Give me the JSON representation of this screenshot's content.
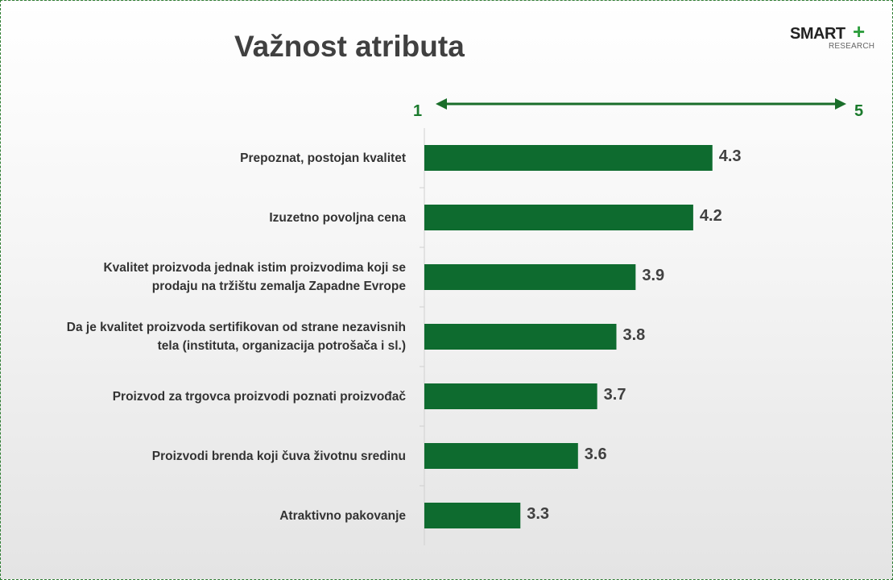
{
  "title": "Važnost atributa",
  "logo": {
    "name": "SMART",
    "plus": "+",
    "sub": "RESEARCH"
  },
  "scale": {
    "min_label": "1",
    "max_label": "5",
    "arrow_color": "#1a6e2a"
  },
  "colors": {
    "bar": "#0e6b2f",
    "axis": "#d0d0d0"
  },
  "chart_data": {
    "type": "bar",
    "orientation": "horizontal",
    "title": "Važnost atributa",
    "categories": [
      [
        "Prepoznat, postojan kvalitet"
      ],
      [
        "Izuzetno povoljna cena"
      ],
      [
        "Kvalitet proizvoda jednak istim proizvodima koji se",
        "prodaju na tržištu zemalja Zapadne Evrope"
      ],
      [
        "Da je kvalitet proizvoda sertifikovan od strane nezavisnih",
        "tela (instituta, organizacija potrošača i sl.)"
      ],
      [
        "Proizvod za trgovca proizvodi poznati proizvođač"
      ],
      [
        "Proizvodi brenda koji čuva životnu sredinu"
      ],
      [
        "Atraktivno pakovanje"
      ]
    ],
    "values": [
      4.3,
      4.2,
      3.9,
      3.8,
      3.7,
      3.6,
      3.3
    ],
    "value_labels": [
      "4.3",
      "4.2",
      "3.9",
      "3.8",
      "3.7",
      "3.6",
      "3.3"
    ],
    "xlim": [
      2.8,
      4.8
    ],
    "xlabel": "",
    "ylabel": "",
    "grid": false,
    "legend": "none"
  }
}
